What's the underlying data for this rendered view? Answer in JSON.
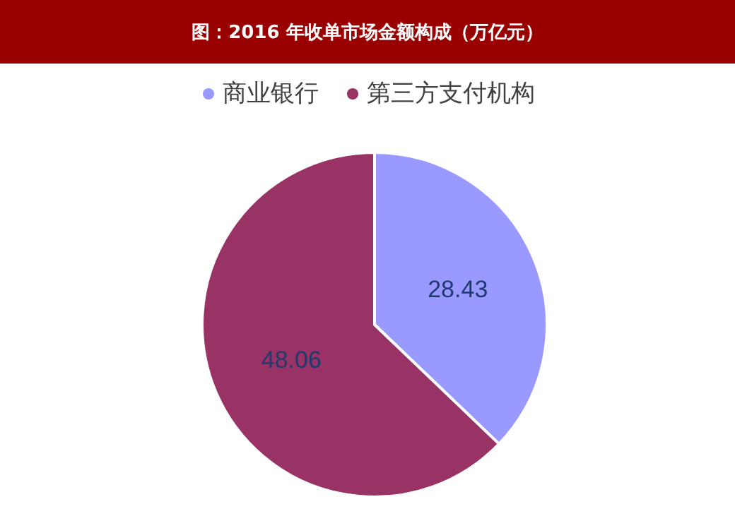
{
  "chart_data": {
    "type": "pie",
    "title": "图：2016 年收单市场金额构成（万亿元）",
    "categories": [
      "商业银行",
      "第三方支付机构"
    ],
    "values": [
      28.43,
      48.06
    ],
    "colors": [
      "#9999ff",
      "#993366"
    ],
    "data_labels": true,
    "legend": "top"
  }
}
